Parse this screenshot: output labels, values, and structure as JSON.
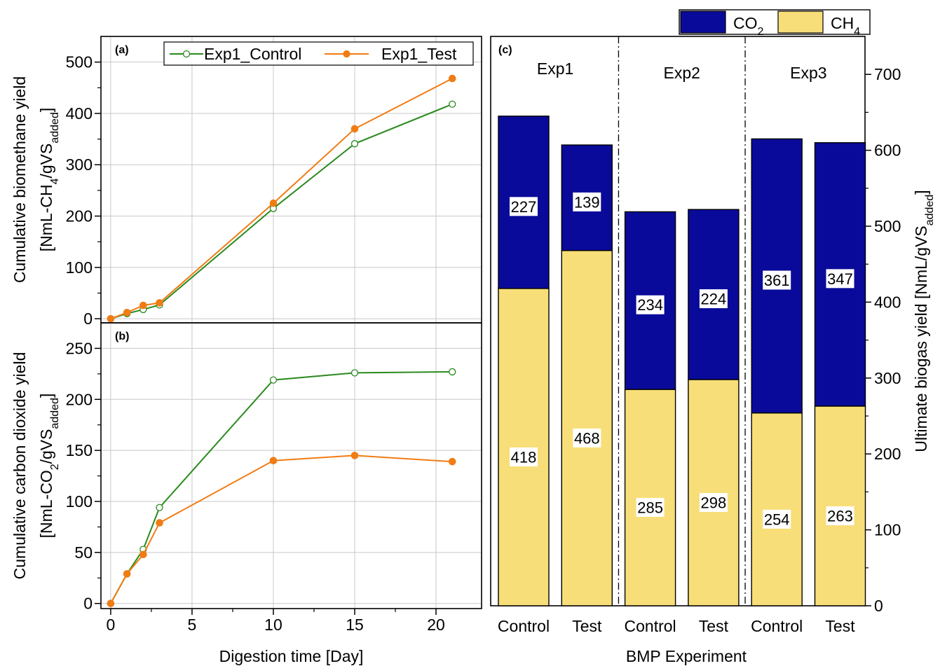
{
  "chart_data": [
    {
      "type": "line",
      "panel": "(a)",
      "xlabel": "",
      "ylabel_line1": "Cumulative biomethane yield",
      "ylabel_line2_prefix": "[NmL-CH",
      "ylabel_line2_sub1": "4",
      "ylabel_line2_mid": "/gVS",
      "ylabel_line2_sub2": "added",
      "ylabel_line2_suffix": "]",
      "xlim": [
        -0.6,
        22.8
      ],
      "ylim": [
        -8,
        550
      ],
      "xticks": [
        0,
        5,
        10,
        15,
        20
      ],
      "yticks": [
        0,
        100,
        200,
        300,
        400,
        500
      ],
      "grid": true,
      "legend_position": "top",
      "series": [
        {
          "name": "Exp1_Control",
          "color": "#2a8a1e",
          "marker": "open-circle",
          "x": [
            0,
            1,
            2,
            3,
            10,
            15,
            21
          ],
          "y": [
            0,
            10,
            18,
            27,
            215,
            341,
            418
          ]
        },
        {
          "name": "Exp1_Test",
          "color": "#f07c14",
          "marker": "filled-circle",
          "x": [
            0,
            1,
            2,
            3,
            10,
            15,
            21
          ],
          "y": [
            0,
            12,
            26,
            31,
            225,
            370,
            468
          ]
        }
      ]
    },
    {
      "type": "line",
      "panel": "(b)",
      "xlabel": "Digestion time [Day]",
      "ylabel_line1": "Cumulative carbon dioxide yield",
      "ylabel_line2_prefix": "[NmL-CO",
      "ylabel_line2_sub1": "2",
      "ylabel_line2_mid": "/gVS",
      "ylabel_line2_sub2": "added",
      "ylabel_line2_suffix": "]",
      "xlim": [
        -0.6,
        22.8
      ],
      "ylim": [
        -5,
        275
      ],
      "xticks": [
        0,
        5,
        10,
        15,
        20
      ],
      "yticks": [
        0,
        50,
        100,
        150,
        200,
        250
      ],
      "grid": true,
      "series": [
        {
          "name": "Exp1_Control",
          "color": "#2a8a1e",
          "marker": "open-circle",
          "x": [
            0,
            1,
            2,
            3,
            10,
            15,
            21
          ],
          "y": [
            0,
            29,
            53,
            94,
            219,
            226,
            227
          ]
        },
        {
          "name": "Exp1_Test",
          "color": "#f07c14",
          "marker": "filled-circle",
          "x": [
            0,
            1,
            2,
            3,
            10,
            15,
            21
          ],
          "y": [
            0,
            29,
            48,
            79,
            140,
            145,
            139
          ]
        }
      ]
    },
    {
      "type": "bar",
      "stacked": true,
      "panel": "(c)",
      "xlabel": "BMP Experiment",
      "ylabel_prefix": "Ultimate biogas yield [NmL/gVS",
      "ylabel_sub": "added",
      "ylabel_suffix": "]",
      "ylim": [
        0,
        750
      ],
      "yticks": [
        0,
        100,
        200,
        300,
        400,
        500,
        600,
        700
      ],
      "categories": [
        "Control",
        "Test",
        "Control",
        "Test",
        "Control",
        "Test"
      ],
      "groups": [
        {
          "label": "Exp1",
          "bars": [
            0,
            1
          ]
        },
        {
          "label": "Exp2",
          "bars": [
            2,
            3
          ]
        },
        {
          "label": "Exp3",
          "bars": [
            4,
            5
          ]
        }
      ],
      "series": [
        {
          "name": "CH",
          "sub": "4",
          "color": "#f8de78",
          "values": [
            418,
            468,
            285,
            298,
            254,
            263
          ]
        },
        {
          "name": "CO",
          "sub": "2",
          "color": "#0a0a9a",
          "values": [
            227,
            139,
            234,
            224,
            361,
            347
          ]
        }
      ],
      "legend_position": "top-right"
    }
  ]
}
